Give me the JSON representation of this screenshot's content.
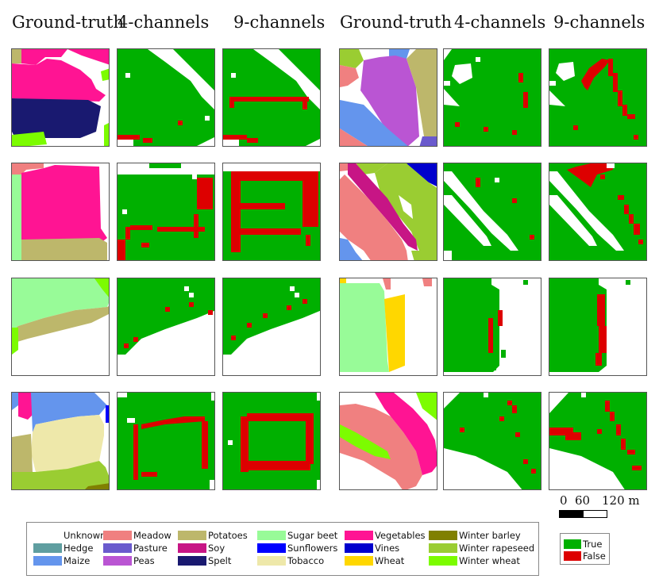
{
  "column_titles": [
    "Ground-truth",
    "4-channels",
    "9-channels",
    "Ground-truth",
    "4-channels",
    "9-channels"
  ],
  "scale_bar": {
    "label_0": "0",
    "label_60": "60",
    "label_120": "120 m"
  },
  "legend": {
    "classes": [
      {
        "label": "Unknown",
        "color": "#ffffff"
      },
      {
        "label": "Hedge",
        "color": "#5f9ea0"
      },
      {
        "label": "Maize",
        "color": "#6495ed"
      },
      {
        "label": "Meadow",
        "color": "#f08080"
      },
      {
        "label": "Pasture",
        "color": "#6a5acd"
      },
      {
        "label": "Peas",
        "color": "#ba55d3"
      },
      {
        "label": "Potatoes",
        "color": "#bdb76b"
      },
      {
        "label": "Soy",
        "color": "#c71585"
      },
      {
        "label": "Spelt",
        "color": "#191970"
      },
      {
        "label": "Sugar beet",
        "color": "#98fb98"
      },
      {
        "label": "Sunflowers",
        "color": "#0000ff"
      },
      {
        "label": "Tobacco",
        "color": "#eee8aa"
      },
      {
        "label": "Vegetables",
        "color": "#ff1493"
      },
      {
        "label": "Vines",
        "color": "#0000cd"
      },
      {
        "label": "Wheat",
        "color": "#ffd700"
      },
      {
        "label": "Winter barley",
        "color": "#808000"
      },
      {
        "label": "Winter rapeseed",
        "color": "#9acd32"
      },
      {
        "label": "Winter wheat",
        "color": "#7cfc00"
      }
    ],
    "accuracy": [
      {
        "label": "True",
        "color": "#00b000"
      },
      {
        "label": "False",
        "color": "#dd0000"
      }
    ]
  }
}
